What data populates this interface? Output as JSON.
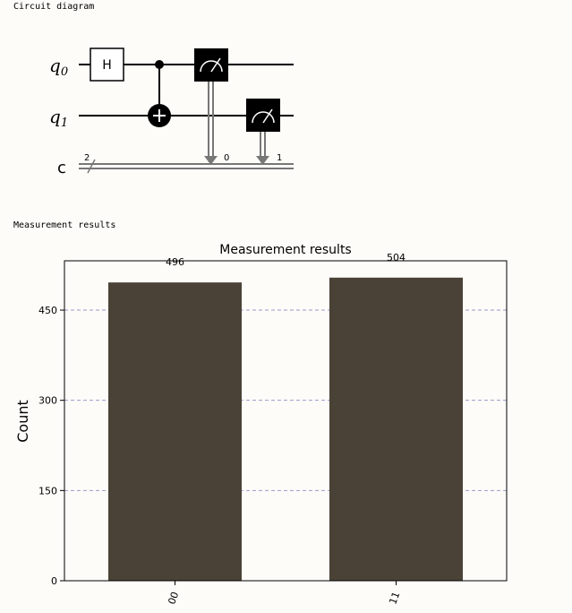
{
  "sections": {
    "circuit_caption": "Circuit diagram",
    "results_caption": "Measurement results"
  },
  "circuit": {
    "qubits": [
      {
        "label": "q",
        "sub": "0"
      },
      {
        "label": "q",
        "sub": "1"
      }
    ],
    "classical": {
      "label": "c",
      "width": "2"
    },
    "gates": [
      {
        "type": "H",
        "qubit": 0,
        "label": "H"
      },
      {
        "type": "CNOT",
        "control": 0,
        "target": 1
      },
      {
        "type": "measure",
        "qubit": 0,
        "bit": "0"
      },
      {
        "type": "measure",
        "qubit": 1,
        "bit": "1"
      }
    ]
  },
  "chart_data": {
    "type": "bar",
    "title": "Measurement results",
    "ylabel": "Count",
    "xlabel": "",
    "categories": [
      "00",
      "11"
    ],
    "values": [
      496,
      504
    ],
    "data_labels": [
      "496",
      "504"
    ],
    "ylim": [
      0,
      532
    ],
    "yticks": [
      0,
      150,
      300,
      450
    ],
    "ytick_labels": [
      "0",
      "150",
      "300",
      "450"
    ],
    "grid": "horizontal dashed",
    "bar_color": "#4a4236",
    "grid_color": "#9999cc"
  }
}
